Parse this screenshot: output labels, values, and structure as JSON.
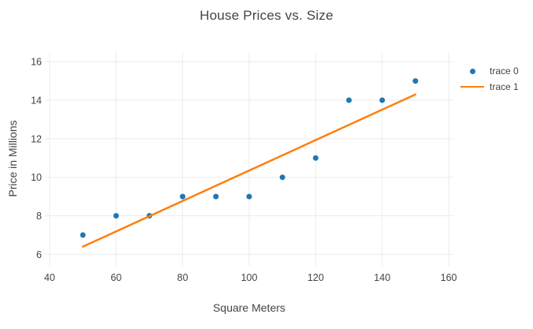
{
  "chart_data": {
    "type": "scatter",
    "title": "House Prices vs. Size",
    "xlabel": "Square Meters",
    "ylabel": "Price in Millions",
    "xlim": [
      38.6,
      161.4
    ],
    "ylim": [
      5.4,
      16.5
    ],
    "x_ticks": [
      40,
      60,
      80,
      100,
      120,
      140,
      160
    ],
    "y_ticks": [
      6,
      8,
      10,
      12,
      14,
      16
    ],
    "grid": true,
    "legend_position": "right",
    "series": [
      {
        "name": "trace 0",
        "mode": "markers",
        "color": "#1f77b4",
        "x": [
          50,
          60,
          70,
          80,
          90,
          100,
          110,
          120,
          130,
          140,
          150
        ],
        "y": [
          7,
          8,
          8,
          9,
          9,
          9,
          10,
          11,
          14,
          14,
          15
        ]
      },
      {
        "name": "trace 1",
        "mode": "lines",
        "color": "#ff7f0e",
        "x": [
          50,
          150
        ],
        "y": [
          6.4,
          14.3
        ]
      }
    ]
  },
  "colors": {
    "grid": "#ebebeb",
    "text": "#444444",
    "tick_text": "#444444",
    "background": "#ffffff"
  }
}
